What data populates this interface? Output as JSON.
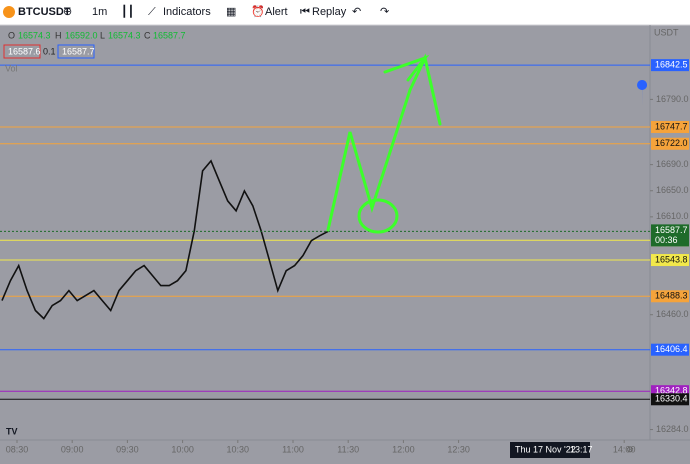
{
  "toolbar": {
    "symbol": "BTCUSDT",
    "interval": "1m",
    "indicators": "Indicators",
    "alert": "Alert",
    "replay": "Replay"
  },
  "legend": {
    "ohlc": [
      "16574.3",
      "16592.0",
      "16574.3",
      "16587.7"
    ],
    "sell": "16587.6",
    "spread": "0.1",
    "buy": "16587.7",
    "volume": "Vol"
  },
  "chart": {
    "currency": "USDT",
    "ylim": [
      16268,
      16904
    ],
    "yticks": [
      {
        "value": 16790,
        "label": "16790.0"
      },
      {
        "value": 16690,
        "label": "16690.0"
      },
      {
        "value": 16650,
        "label": "16650.0"
      },
      {
        "value": 16610,
        "label": "16610.0"
      },
      {
        "value": 16460,
        "label": "16460.0"
      },
      {
        "value": 16284,
        "label": "16284.0"
      }
    ],
    "levels": [
      {
        "price": 16842.5,
        "color": "#2962ff"
      },
      {
        "price": {
          "value": 16747.7,
          "label": "16747.7"
        },
        "color": "#f5a33b"
      },
      {
        "price": {
          "value": 16722.0,
          "label": "16722.0"
        },
        "color": "#f5a33b"
      },
      {
        "price": 16574.1,
        "color": "#f2e84b"
      },
      {
        "price": 16543.8,
        "color": "#f2e84b"
      },
      {
        "price": 16488.3,
        "color": "#f5a33b"
      },
      {
        "price": 16406.4,
        "color": "#2962ff"
      },
      {
        "price": 16342.8,
        "color": "#a020c0"
      },
      {
        "price": 16330.4,
        "color": "#111111"
      }
    ],
    "last_price": {
      "price": 16587.7,
      "countdown": "00:36",
      "color": "#1e6b2a"
    },
    "price_series": [
      16481.6,
      16512.2,
      16535.2,
      16496.9,
      16466.4,
      16454.1,
      16474.0,
      16481.6,
      16496.9,
      16481.6,
      16489.3,
      16496.9,
      16481.6,
      16466.4,
      16496.9,
      16512.2,
      16527.5,
      16535.2,
      16519.9,
      16504.6,
      16504.6,
      16512.2,
      16527.5,
      16588.7,
      16680.4,
      16695.7,
      16665.1,
      16634.5,
      16619.3,
      16649.8,
      16626.9,
      16588.7,
      16542.8,
      16496.9,
      16527.5,
      16535.2,
      16550.5,
      16573.4,
      16581.0,
      16587.7
    ],
    "xticks": [
      "08:30",
      "09:00",
      "09:30",
      "10:00",
      "10:30",
      "11:00",
      "11:30",
      "12:00",
      "12:30",
      "14:00"
    ],
    "cursor_time": {
      "date": "Thu 17 Nov '22",
      "time": "13:17"
    }
  }
}
